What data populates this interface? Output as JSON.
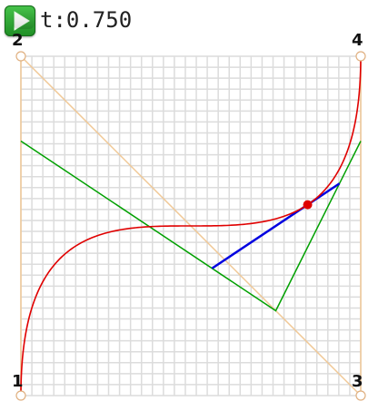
{
  "toolbar": {
    "play_icon": "play-icon",
    "t_prefix": "t:",
    "t_value": "0.750"
  },
  "colors": {
    "grid": "#dcdcdc",
    "control_polygon": "#f0c896",
    "curve": "#e00000",
    "level1": "#00a000",
    "level2": "#0000e0",
    "point": "#e00000",
    "play_button": "#2fa832"
  },
  "control_points": [
    {
      "label": "1",
      "x": 0,
      "y": 0
    },
    {
      "label": "2",
      "x": 0,
      "y": 1
    },
    {
      "label": "3",
      "x": 1,
      "y": 0
    },
    {
      "label": "4",
      "x": 1,
      "y": 1
    }
  ],
  "t": 0.75
}
